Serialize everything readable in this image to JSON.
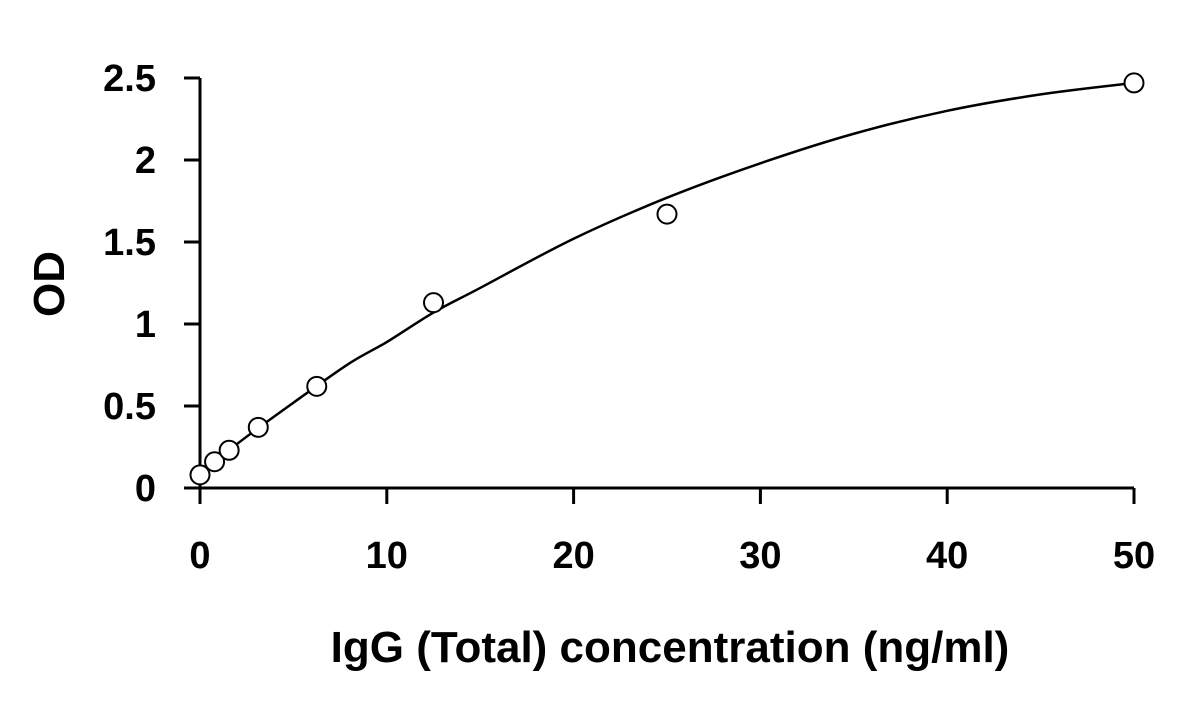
{
  "chart_data": {
    "type": "scatter",
    "xlabel": "IgG (Total) concentration (ng/ml)",
    "ylabel": "OD",
    "xlim": [
      0,
      50
    ],
    "ylim": [
      0,
      2.5
    ],
    "x_ticks": [
      "0",
      "10",
      "20",
      "30",
      "40",
      "50"
    ],
    "y_ticks": [
      "0",
      "0.5",
      "1",
      "1.5",
      "2",
      "2.5"
    ],
    "grid": false,
    "legend": "none",
    "series": [
      {
        "marker": "open-circle",
        "x": [
          0,
          0.78,
          1.56,
          3.12,
          6.25,
          12.5,
          25,
          50
        ],
        "y": [
          0.08,
          0.16,
          0.23,
          0.37,
          0.62,
          1.13,
          1.67,
          2.47
        ]
      }
    ],
    "fit_curve": {
      "x": [
        0,
        2,
        5,
        8,
        10,
        12.5,
        15,
        20,
        25,
        30,
        35,
        40,
        45,
        50
      ],
      "y": [
        0.08,
        0.27,
        0.52,
        0.76,
        0.89,
        1.07,
        1.22,
        1.52,
        1.77,
        1.98,
        2.16,
        2.3,
        2.4,
        2.47
      ]
    },
    "colors": {
      "axis": "#000000",
      "marker_stroke": "#000000",
      "marker_fill": "#ffffff",
      "curve": "#000000"
    }
  }
}
